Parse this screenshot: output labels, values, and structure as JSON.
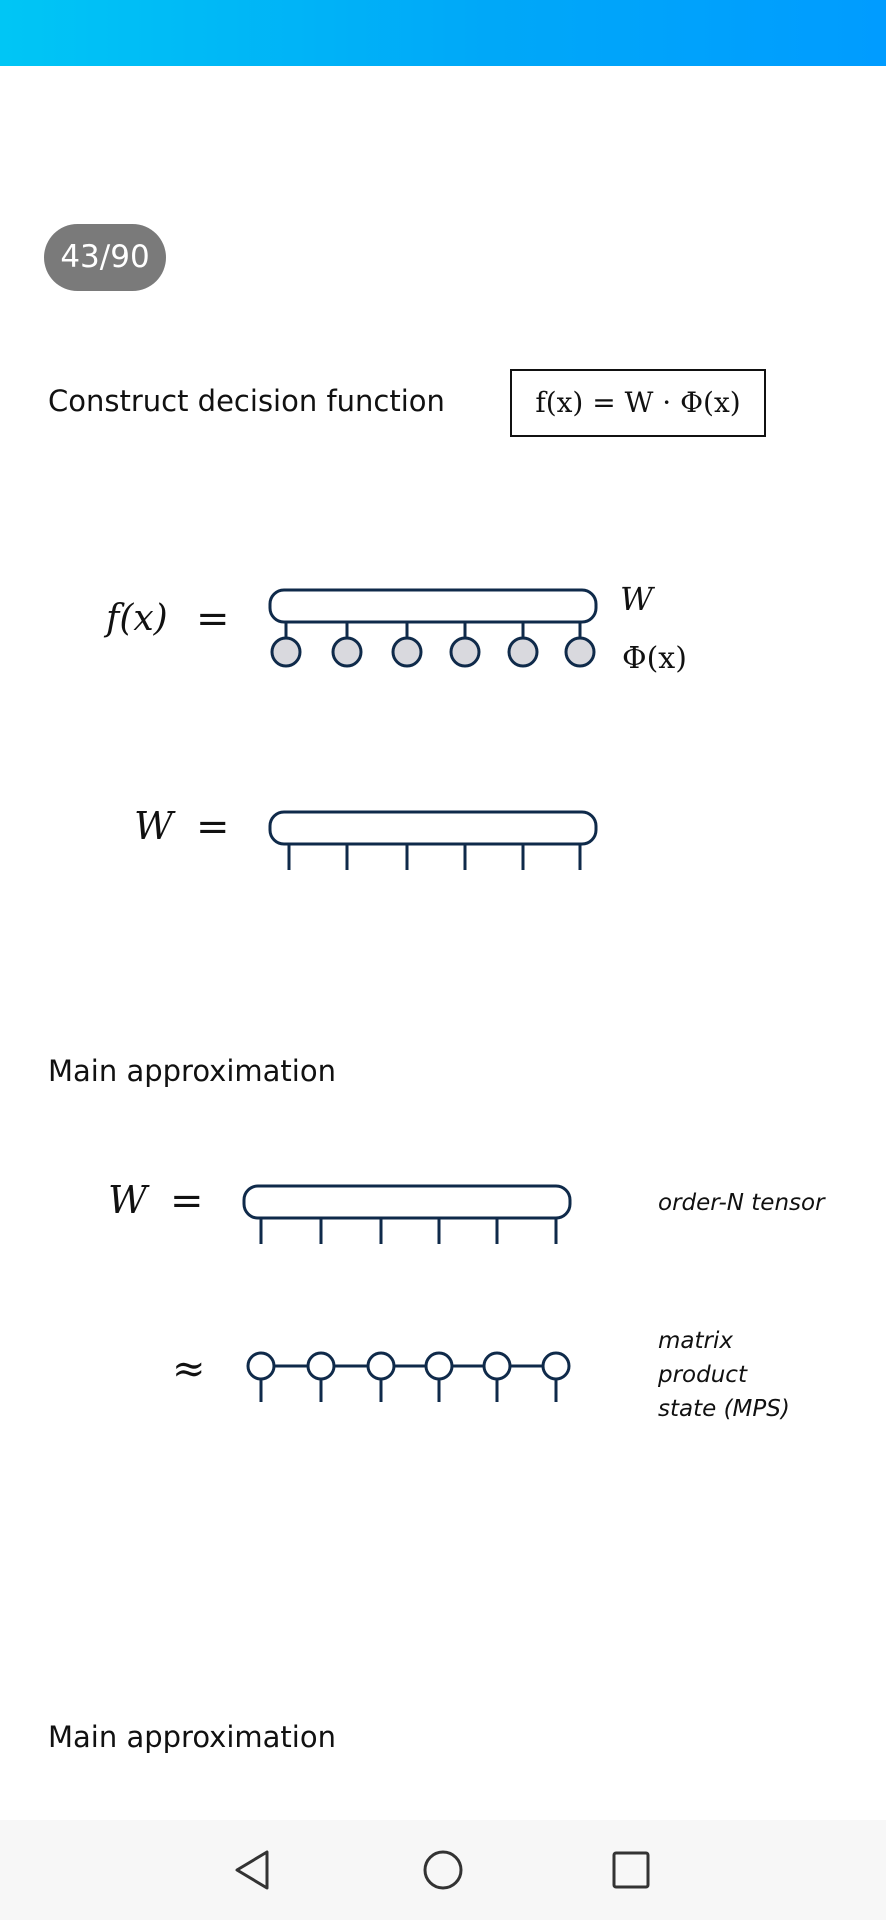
{
  "page_counter": "43/90",
  "slide": {
    "heading_1": "Construct decision function",
    "boxed_formula": "f(x) = W · Φ(x)",
    "eq1": {
      "lhs": "f(x)",
      "equals": "=",
      "label_top": "W",
      "label_bottom": "Φ(x)"
    },
    "eq2": {
      "lhs": "W",
      "equals": "="
    },
    "heading_2": "Main approximation",
    "eq3": {
      "lhs": "W",
      "equals": "=",
      "label": "order-N tensor"
    },
    "eq4": {
      "approx": "≈",
      "label_lines": [
        "matrix",
        "product",
        "state (MPS)"
      ]
    },
    "heading_3": "Main approximation"
  },
  "diagram_style": {
    "stroke_color": "#0f2a4a",
    "node_fill": "#d9d9de",
    "site_count": 6
  },
  "navbar": {
    "back_icon": "back-triangle-icon",
    "home_icon": "home-circle-icon",
    "recents_icon": "recents-square-icon"
  },
  "colors": {
    "topbar_start": "#00c6f5",
    "topbar_end": "#009cff",
    "badge_bg": "#7a7a7a"
  }
}
